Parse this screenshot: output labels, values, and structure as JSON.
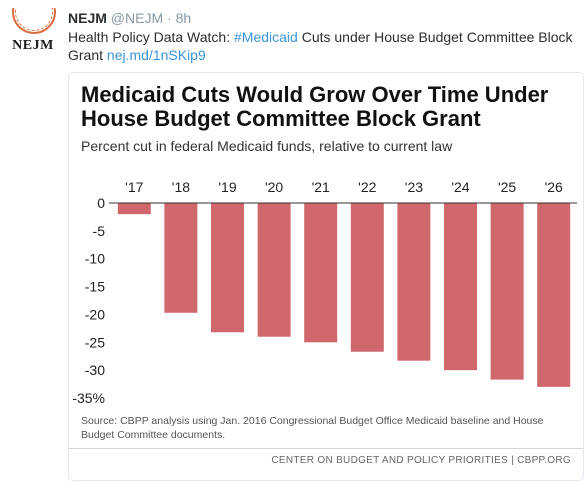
{
  "tweet": {
    "author_name": "NEJM",
    "author_handle": "@NEJM",
    "separator": "·",
    "timestamp": "8h",
    "avatar_text": "NEJM",
    "text_before": "Health Policy Data Watch: ",
    "hashtag": "#Medicaid",
    "text_after": " Cuts under House Budget Committee Block Grant ",
    "link": "nej.md/1nSKip9"
  },
  "card": {
    "title": "Medicaid Cuts Would Grow Over Time Under House Budget Committee Block Grant",
    "subtitle": "Percent cut in federal Medicaid funds, relative to current law",
    "source": "Source: CBPP analysis using Jan. 2016 Congressional Budget Office Medicaid baseline and House Budget Committee documents.",
    "credit": "CENTER ON BUDGET AND POLICY PRIORITIES | CBPP.ORG"
  },
  "chart_data": {
    "type": "bar",
    "categories": [
      "'17",
      "'18",
      "'19",
      "'20",
      "'21",
      "'22",
      "'23",
      "'24",
      "'25",
      "'26"
    ],
    "values": [
      -2,
      -19.7,
      -23.2,
      -24,
      -25,
      -26.7,
      -28.3,
      -30,
      -31.7,
      -33
    ],
    "title": "Medicaid Cuts Would Grow Over Time Under House Budget Committee Block Grant",
    "subtitle": "Percent cut in federal Medicaid funds, relative to current law",
    "ylim": [
      -35,
      0
    ],
    "y_ticks": [
      "0",
      "-5",
      "-10",
      "-15",
      "-20",
      "-25",
      "-30",
      "-35%"
    ],
    "category_axis_position": "top",
    "grid": false,
    "legend": "none",
    "bar_color": "#d0676d"
  }
}
